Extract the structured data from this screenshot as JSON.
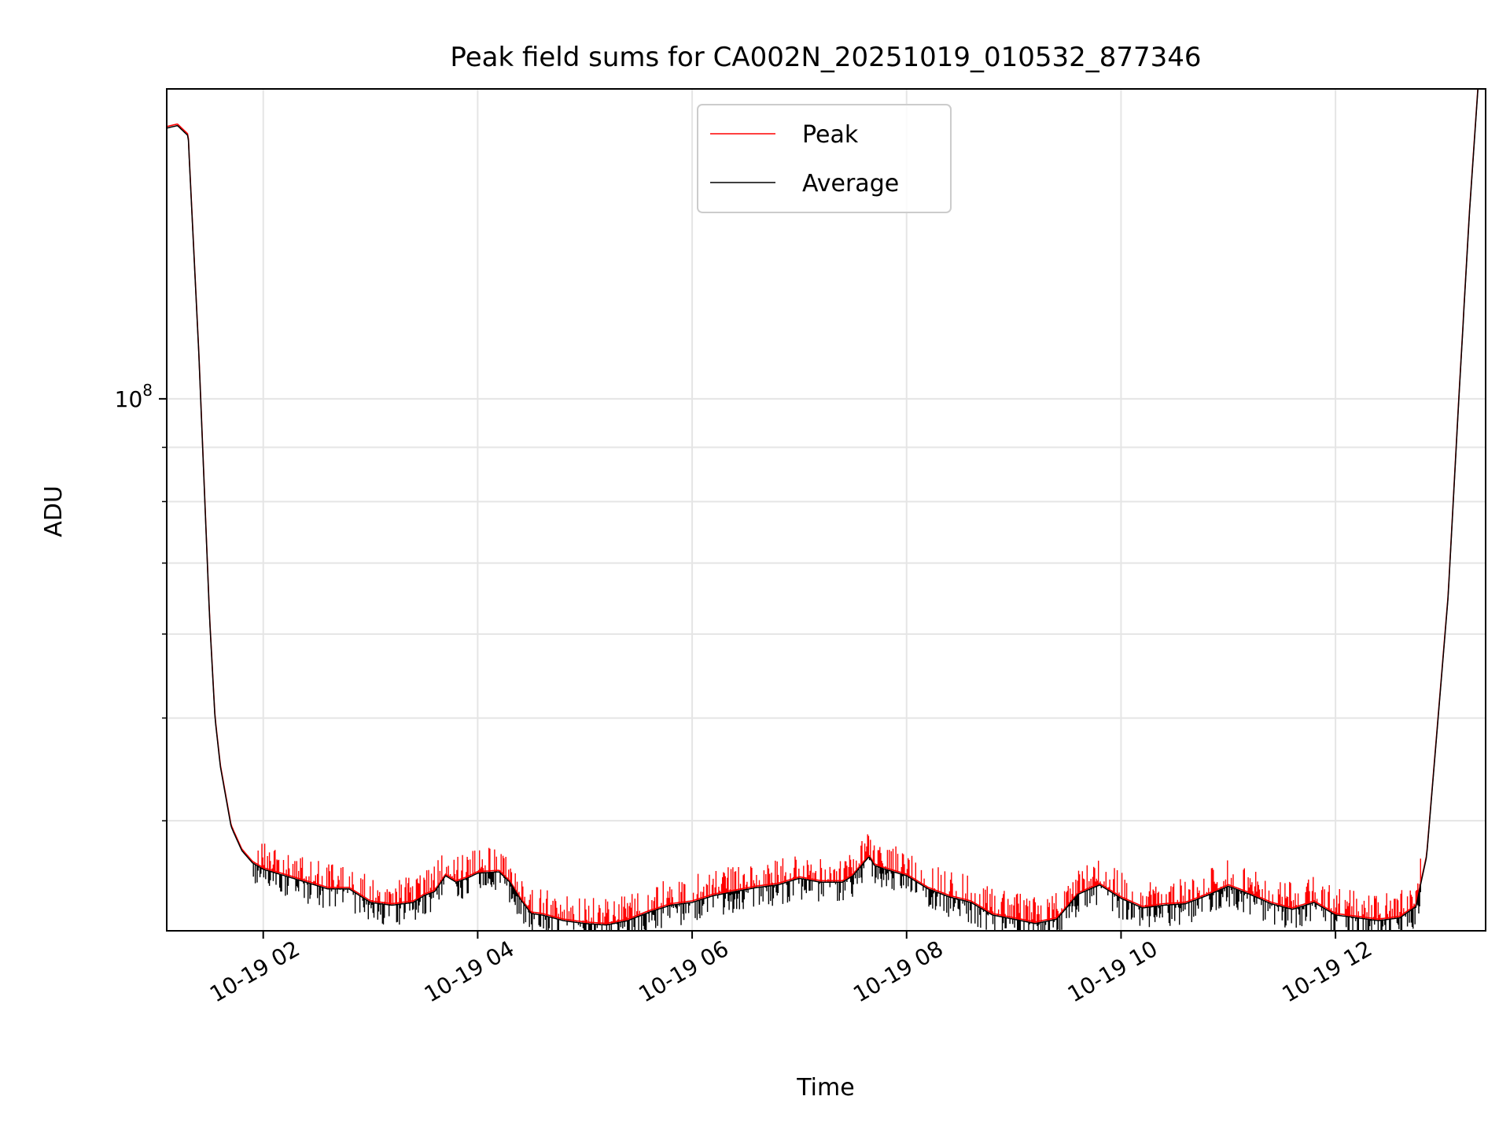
{
  "chart_data": {
    "type": "line",
    "title": "Peak field sums for CA002N_20251019_010532_877346",
    "xlabel": "Time",
    "ylabel": "ADU",
    "yscale": "log",
    "xlim": [
      1.1,
      13.4
    ],
    "ylim": [
      31500000,
      196000000
    ],
    "x_ticks": [
      {
        "value": 2,
        "label": "10-19 02"
      },
      {
        "value": 4,
        "label": "10-19 04"
      },
      {
        "value": 6,
        "label": "10-19 06"
      },
      {
        "value": 8,
        "label": "10-19 08"
      },
      {
        "value": 10,
        "label": "10-19 10"
      },
      {
        "value": 12,
        "label": "10-19 12"
      }
    ],
    "y_major_ticks": [
      {
        "value": 100000000,
        "base": "10",
        "exponent": "8"
      }
    ],
    "y_minor_ticks": [
      40000000,
      50000000,
      60000000,
      70000000,
      80000000,
      90000000
    ],
    "grid": true,
    "legend_position": "top-center",
    "series": [
      {
        "name": "Peak",
        "color": "#ff0000"
      },
      {
        "name": "Average",
        "color": "#000000"
      }
    ],
    "x": [
      1.1,
      1.2,
      1.3,
      1.4,
      1.5,
      1.55,
      1.6,
      1.7,
      1.8,
      1.9,
      2.0,
      2.2,
      2.4,
      2.6,
      2.8,
      3.0,
      3.2,
      3.4,
      3.5,
      3.6,
      3.7,
      3.8,
      3.9,
      4.0,
      4.2,
      4.3,
      4.4,
      4.5,
      4.6,
      4.7,
      4.8,
      5.0,
      5.2,
      5.4,
      5.6,
      5.8,
      6.0,
      6.2,
      6.4,
      6.6,
      6.8,
      7.0,
      7.2,
      7.4,
      7.5,
      7.6,
      7.65,
      7.7,
      7.8,
      8.0,
      8.2,
      8.4,
      8.6,
      8.8,
      9.0,
      9.2,
      9.4,
      9.6,
      9.8,
      10.0,
      10.2,
      10.4,
      10.6,
      10.8,
      11.0,
      11.2,
      11.4,
      11.6,
      11.8,
      12.0,
      12.2,
      12.4,
      12.6,
      12.75,
      12.85,
      12.95,
      13.05,
      13.15,
      13.25,
      13.33
    ],
    "average": [
      180000000,
      181000000,
      177000000,
      110000000,
      62000000,
      50000000,
      45000000,
      39500000,
      37500000,
      36500000,
      36000000,
      35500000,
      35000000,
      34500000,
      34500000,
      33500000,
      33300000,
      33500000,
      34000000,
      34300000,
      35500000,
      35000000,
      35300000,
      35700000,
      35800000,
      35000000,
      33700000,
      32700000,
      32600000,
      32400000,
      32200000,
      32000000,
      31900000,
      32200000,
      32800000,
      33300000,
      33500000,
      34000000,
      34300000,
      34600000,
      34800000,
      35300000,
      35000000,
      35000000,
      35500000,
      36500000,
      37000000,
      36300000,
      36000000,
      35500000,
      34500000,
      33900000,
      33500000,
      32600000,
      32300000,
      32000000,
      32300000,
      34100000,
      34800000,
      33800000,
      33100000,
      33300000,
      33400000,
      34000000,
      34700000,
      34100000,
      33400000,
      33000000,
      33500000,
      32600000,
      32400000,
      32200000,
      32400000,
      33200000,
      37000000,
      49000000,
      65000000,
      100000000,
      150000000,
      197000000
    ]
  }
}
